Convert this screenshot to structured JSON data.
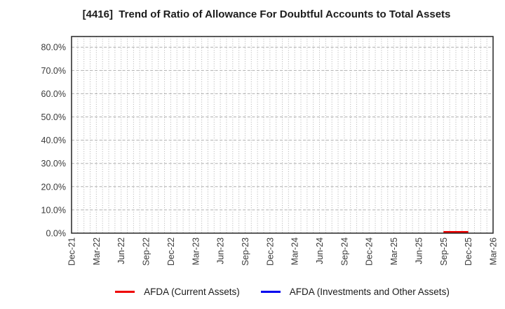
{
  "title": "[4416]  Trend of Ratio of Allowance For Doubtful Accounts to Total Assets",
  "colors": {
    "afda_current": "#ee0000",
    "afda_investments": "#0000ee",
    "grid": "#b0b0b0",
    "axis_border": "#262626",
    "tick_text": "#3a3a3a",
    "title_text": "#1c1c1c",
    "background": "#ffffff"
  },
  "legend": {
    "position": "bottom",
    "items": [
      {
        "label": "AFDA (Current Assets)",
        "series_index": 0
      },
      {
        "label": "AFDA (Investments and Other Assets)",
        "series_index": 1
      }
    ]
  },
  "chart_data": {
    "type": "line",
    "title": "[4416]  Trend of Ratio of Allowance For Doubtful Accounts to Total Assets",
    "xlabel": "",
    "ylabel": "",
    "categories": [
      "Dec-21",
      "Mar-22",
      "Jun-22",
      "Sep-22",
      "Dec-22",
      "Mar-23",
      "Jun-23",
      "Sep-23",
      "Dec-23",
      "Mar-24",
      "Jun-24",
      "Sep-24",
      "Dec-24",
      "Mar-25",
      "Jun-25",
      "Sep-25",
      "Dec-25",
      "Mar-26"
    ],
    "series": [
      {
        "name": "AFDA (Current Assets)",
        "color": "#ee0000",
        "unit": "%",
        "values": [
          null,
          null,
          null,
          null,
          null,
          null,
          null,
          null,
          null,
          null,
          null,
          null,
          null,
          null,
          null,
          0.5,
          0.5,
          null
        ]
      },
      {
        "name": "AFDA (Investments and Other Assets)",
        "color": "#0000ee",
        "unit": "%",
        "values": [
          null,
          null,
          null,
          null,
          null,
          null,
          null,
          null,
          null,
          null,
          null,
          null,
          null,
          null,
          null,
          null,
          null,
          null
        ]
      }
    ],
    "ylim": [
      0,
      84.6
    ],
    "ytick_values": [
      0,
      10,
      20,
      30,
      40,
      50,
      60,
      70,
      80
    ],
    "ytick_labels": [
      "0.0%",
      "10.0%",
      "20.0%",
      "30.0%",
      "40.0%",
      "50.0%",
      "60.0%",
      "70.0%",
      "80.0%"
    ],
    "grid": {
      "vertical": "dotted, 4 minor divisions per category interval",
      "horizontal": "dashed at each 10%"
    },
    "legend_position": "bottom"
  }
}
